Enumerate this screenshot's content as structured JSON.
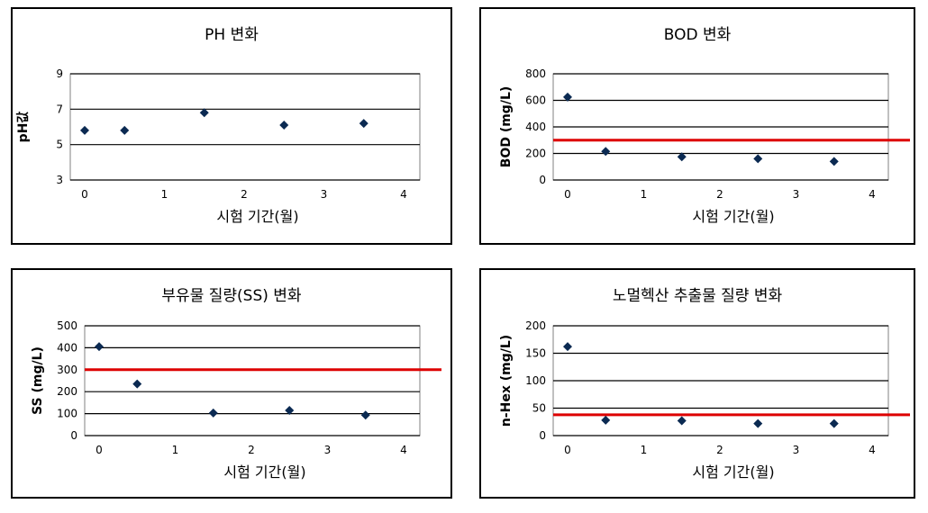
{
  "colors": {
    "marker": "#0b2a52",
    "limit_line": "#dd0000",
    "grid": "#000000"
  },
  "chart_data": [
    {
      "type": "scatter",
      "title": "PH 변화",
      "xlabel": "시험 기간(월)",
      "ylabel": "pH값",
      "xlim": [
        0,
        4
      ],
      "ylim": [
        3,
        9
      ],
      "xticks": [
        "0",
        "1",
        "2",
        "3",
        "4"
      ],
      "yticks": [
        "3",
        "5",
        "7",
        "9"
      ],
      "grid": true,
      "points": [
        {
          "x": 0,
          "y": 5.8
        },
        {
          "x": 0.5,
          "y": 5.8
        },
        {
          "x": 1.5,
          "y": 6.8
        },
        {
          "x": 2.5,
          "y": 6.1
        },
        {
          "x": 3.5,
          "y": 6.2
        }
      ],
      "limit": null
    },
    {
      "type": "scatter",
      "title": "BOD 변화",
      "xlabel": "시험 기간(월)",
      "ylabel": "BOD (mg/L)",
      "xlim": [
        0,
        4
      ],
      "ylim": [
        0,
        800
      ],
      "xticks": [
        "0",
        "1",
        "2",
        "3",
        "4"
      ],
      "yticks": [
        "0",
        "200",
        "400",
        "600",
        "800"
      ],
      "grid": true,
      "points": [
        {
          "x": 0,
          "y": 625
        },
        {
          "x": 0.5,
          "y": 215
        },
        {
          "x": 1.5,
          "y": 175
        },
        {
          "x": 2.5,
          "y": 160
        },
        {
          "x": 3.5,
          "y": 140
        }
      ],
      "limit": 300
    },
    {
      "type": "scatter",
      "title": "부유물 질량(SS) 변화",
      "xlabel": "시험 기간(월)",
      "ylabel": "SS (mg/L)",
      "xlim": [
        0,
        4
      ],
      "ylim": [
        0,
        500
      ],
      "xticks": [
        "0",
        "1",
        "2",
        "3",
        "4"
      ],
      "yticks": [
        "0",
        "100",
        "200",
        "300",
        "400",
        "500"
      ],
      "grid": true,
      "points": [
        {
          "x": 0,
          "y": 405
        },
        {
          "x": 0.5,
          "y": 235
        },
        {
          "x": 1.5,
          "y": 103
        },
        {
          "x": 2.5,
          "y": 115
        },
        {
          "x": 3.5,
          "y": 93
        }
      ],
      "limit": 300
    },
    {
      "type": "scatter",
      "title": "노멀헥산 추출물 질량 변화",
      "xlabel": "시험 기간(월)",
      "ylabel": "n-Hex (mg/L)",
      "xlim": [
        0,
        4
      ],
      "ylim": [
        0,
        200
      ],
      "xticks": [
        "0",
        "1",
        "2",
        "3",
        "4"
      ],
      "yticks": [
        "0",
        "50",
        "100",
        "150",
        "200"
      ],
      "grid": true,
      "points": [
        {
          "x": 0,
          "y": 162
        },
        {
          "x": 0.5,
          "y": 28
        },
        {
          "x": 1.5,
          "y": 27
        },
        {
          "x": 2.5,
          "y": 22
        },
        {
          "x": 3.5,
          "y": 22
        }
      ],
      "limit": 38
    }
  ]
}
